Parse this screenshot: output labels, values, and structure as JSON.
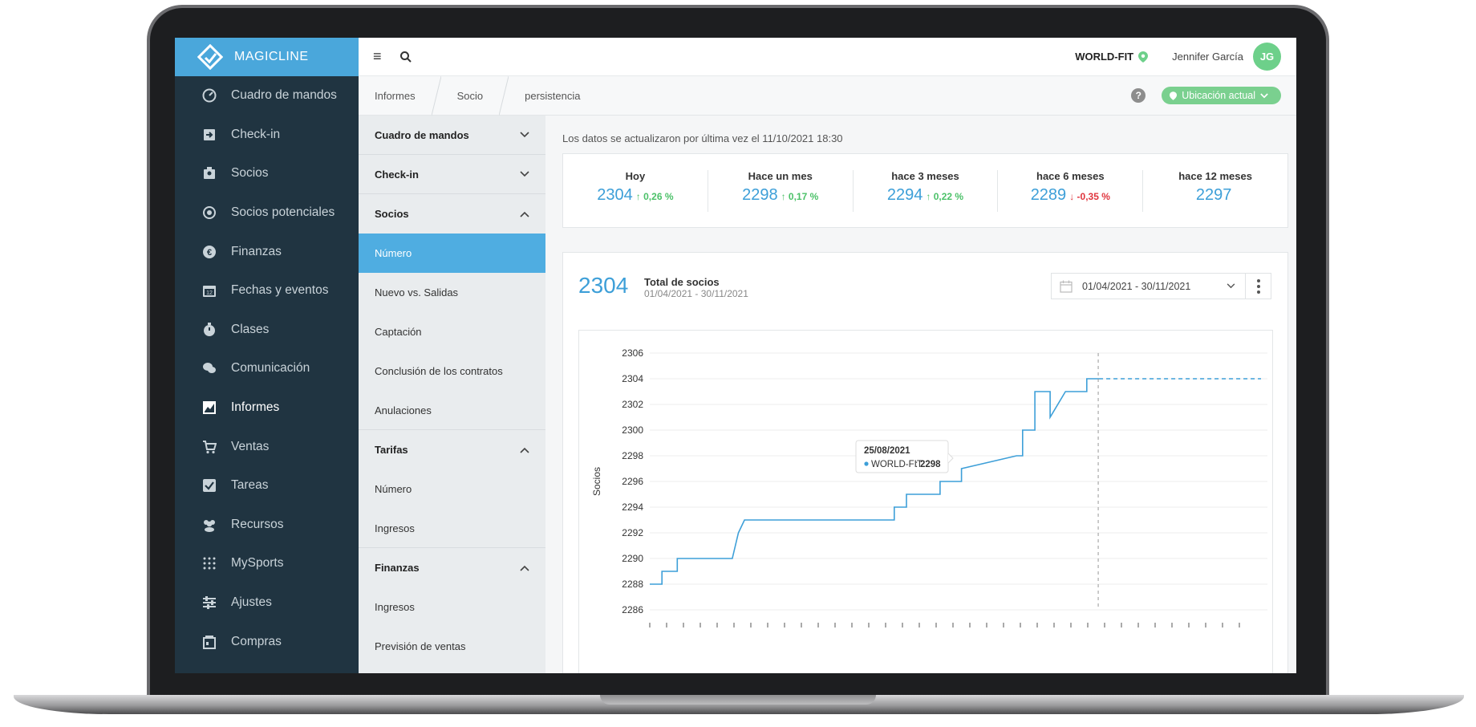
{
  "brand": {
    "name": "MAGICLINE"
  },
  "sidebar": {
    "items": [
      {
        "label": "Cuadro de mandos",
        "icon": "dashboard-icon"
      },
      {
        "label": "Check-in",
        "icon": "check-in-icon"
      },
      {
        "label": "Socios",
        "icon": "members-icon"
      },
      {
        "label": "Socios potenciales",
        "icon": "leads-icon"
      },
      {
        "label": "Finanzas",
        "icon": "euro-icon"
      },
      {
        "label": "Fechas y eventos",
        "icon": "calendar-icon"
      },
      {
        "label": "Clases",
        "icon": "stopwatch-icon"
      },
      {
        "label": "Comunicación",
        "icon": "chat-icon"
      },
      {
        "label": "Informes",
        "icon": "report-icon",
        "active": true
      },
      {
        "label": "Ventas",
        "icon": "cart-icon"
      },
      {
        "label": "Tareas",
        "icon": "checkbox-icon"
      },
      {
        "label": "Recursos",
        "icon": "people-icon"
      },
      {
        "label": "MySports",
        "icon": "dots-grid-icon"
      },
      {
        "label": "Ajustes",
        "icon": "sliders-icon"
      },
      {
        "label": "Compras",
        "icon": "shop-icon"
      }
    ]
  },
  "topbar": {
    "studio": "WORLD-FIT",
    "user": "Jennifer García",
    "avatar_initials": "JG"
  },
  "breadcrumb": {
    "items": [
      "Informes",
      "Socio",
      "persistencia"
    ],
    "location_button": "Ubicación actual",
    "help": "?"
  },
  "submenu": {
    "section_dashboard": "Cuadro de mandos",
    "section_checkin": "Check-in",
    "section_socios": "Socios",
    "socios_items": [
      "Número",
      "Nuevo vs. Salidas",
      "Captación",
      "Conclusión de los contratos",
      "Anulaciones"
    ],
    "section_tarifas": "Tarifas",
    "tarifas_items": [
      "Número",
      "Ingresos"
    ],
    "section_finanzas": "Finanzas",
    "finanzas_items": [
      "Ingresos",
      "Previsión de ventas"
    ]
  },
  "main": {
    "updated": "Los datos se actualizaron por última vez el 11/10/2021 18:30",
    "kpis": [
      {
        "label": "Hoy",
        "value": "2304",
        "delta": "↑ 0,26 %",
        "dir": "up"
      },
      {
        "label": "Hace un mes",
        "value": "2298",
        "delta": "↑ 0,17 %",
        "dir": "up"
      },
      {
        "label": "hace 3 meses",
        "value": "2294",
        "delta": "↑ 0,22 %",
        "dir": "up"
      },
      {
        "label": "hace 6 meses",
        "value": "2289",
        "delta": "↓ -0,35 %",
        "dir": "down"
      },
      {
        "label": "hace 12 meses",
        "value": "2297",
        "delta": "",
        "dir": ""
      }
    ],
    "total_value": "2304",
    "total_label": "Total de socios",
    "total_range": "01/04/2021 - 30/11/2021",
    "date_picker": "01/04/2021 - 30/11/2021"
  },
  "colors": {
    "accent": "#4fade1",
    "sidebar": "#203441",
    "up": "#4cc169",
    "down": "#e0353e",
    "line": "#3d9fd8"
  },
  "chart_data": {
    "type": "line",
    "ylabel": "Socios",
    "ylim": [
      2286,
      2306
    ],
    "yticks": [
      2286,
      2288,
      2290,
      2292,
      2294,
      2296,
      2298,
      2300,
      2302,
      2304,
      2306
    ],
    "series": [
      {
        "name": "WORLD-FIT",
        "x": [
          0,
          0.02,
          0.02,
          0.045,
          0.045,
          0.075,
          0.075,
          0.135,
          0.145,
          0.155,
          0.155,
          0.4,
          0.4,
          0.42,
          0.42,
          0.475,
          0.475,
          0.51,
          0.51,
          0.6,
          0.6,
          0.61,
          0.61,
          0.63,
          0.63,
          0.655,
          0.655,
          0.68,
          0.68,
          0.685,
          0.69,
          0.69,
          0.715,
          0.715,
          0.735
        ],
        "values": [
          2288,
          2288,
          2289,
          2289,
          2290,
          2290,
          2290,
          2290,
          2292,
          2293,
          2293,
          2293,
          2294,
          2294,
          2295,
          2295,
          2296,
          2296,
          2297,
          2298,
          2298,
          2298,
          2300,
          2300,
          2303,
          2303,
          2301,
          2303,
          2303,
          2303,
          2303,
          2303,
          2303,
          2304,
          2304
        ]
      }
    ],
    "forecast": {
      "value": 2304
    },
    "tooltip": {
      "date": "25/08/2021",
      "series": "WORLD-FIT",
      "value": "2298"
    }
  }
}
